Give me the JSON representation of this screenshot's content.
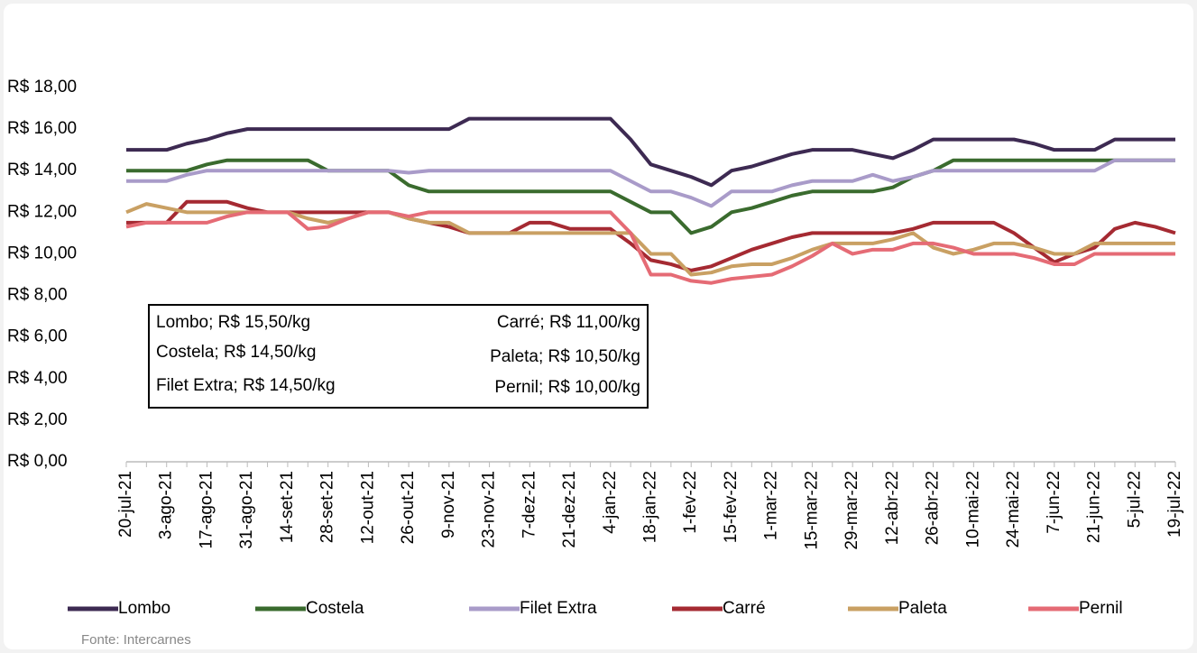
{
  "chart_data": {
    "type": "line",
    "categories": [
      "20-jul-21",
      null,
      "3-ago-21",
      null,
      "17-ago-21",
      null,
      "31-ago-21",
      null,
      "14-set-21",
      null,
      "28-set-21",
      null,
      "12-out-21",
      null,
      "26-out-21",
      null,
      "9-nov-21",
      null,
      "23-nov-21",
      null,
      "7-dez-21",
      null,
      "21-dez-21",
      null,
      "4-jan-22",
      null,
      "18-jan-22",
      null,
      "1-fev-22",
      null,
      "15-fev-22",
      null,
      "1-mar-22",
      null,
      "15-mar-22",
      null,
      "29-mar-22",
      null,
      "12-abr-22",
      null,
      "26-abr-22",
      null,
      "10-mai-22",
      null,
      "24-mai-22",
      null,
      "7-jun-22",
      null,
      "21-jun-22",
      null,
      "5-jul-22",
      null,
      "19-jul-22"
    ],
    "series": [
      {
        "name": "Lombo",
        "color": "#3d2a52",
        "values": [
          15,
          15,
          15,
          15.3,
          15.5,
          15.8,
          16,
          16,
          16,
          16,
          16,
          16,
          16,
          16,
          16,
          16,
          16,
          16.5,
          16.5,
          16.5,
          16.5,
          16.5,
          16.5,
          16.5,
          16.5,
          15.5,
          14.3,
          14,
          13.7,
          13.3,
          14,
          14.2,
          14.5,
          14.8,
          15,
          15,
          15,
          14.8,
          14.6,
          15,
          15.5,
          15.5,
          15.5,
          15.5,
          15.5,
          15.3,
          15,
          15,
          15,
          15.5,
          15.5,
          15.5,
          15.5
        ]
      },
      {
        "name": "Costela",
        "color": "#3a6b2e",
        "values": [
          14,
          14,
          14,
          14,
          14.3,
          14.5,
          14.5,
          14.5,
          14.5,
          14.5,
          14,
          14,
          14,
          14,
          13.3,
          13,
          13,
          13,
          13,
          13,
          13,
          13,
          13,
          13,
          13,
          12.5,
          12,
          12,
          11,
          11.3,
          12,
          12.2,
          12.5,
          12.8,
          13,
          13,
          13,
          13,
          13.2,
          13.7,
          14,
          14.5,
          14.5,
          14.5,
          14.5,
          14.5,
          14.5,
          14.5,
          14.5,
          14.5,
          14.5,
          14.5,
          14.5
        ]
      },
      {
        "name": "Filet Extra",
        "color": "#a99bc9",
        "values": [
          13.5,
          13.5,
          13.5,
          13.8,
          14,
          14,
          14,
          14,
          14,
          14,
          14,
          14,
          14,
          14,
          13.9,
          14,
          14,
          14,
          14,
          14,
          14,
          14,
          14,
          14,
          14,
          13.5,
          13,
          13,
          12.7,
          12.3,
          13,
          13,
          13,
          13.3,
          13.5,
          13.5,
          13.5,
          13.8,
          13.5,
          13.7,
          14,
          14,
          14,
          14,
          14,
          14,
          14,
          14,
          14,
          14.5,
          14.5,
          14.5,
          14.5
        ]
      },
      {
        "name": "Carré",
        "color": "#a52a32",
        "values": [
          11.5,
          11.5,
          11.5,
          12.5,
          12.5,
          12.5,
          12.2,
          12,
          12,
          12,
          12,
          12,
          12,
          12,
          11.7,
          11.5,
          11.3,
          11,
          11,
          11,
          11.5,
          11.5,
          11.2,
          11.2,
          11.2,
          10.5,
          9.7,
          9.5,
          9.2,
          9.4,
          9.8,
          10.2,
          10.5,
          10.8,
          11,
          11,
          11,
          11,
          11,
          11.2,
          11.5,
          11.5,
          11.5,
          11.5,
          11,
          10.3,
          9.6,
          10,
          10.3,
          11.2,
          11.5,
          11.3,
          11
        ]
      },
      {
        "name": "Paleta",
        "color": "#c9a063",
        "values": [
          12,
          12.4,
          12.2,
          12,
          12,
          12,
          12,
          12,
          12,
          11.7,
          11.5,
          11.7,
          12,
          12,
          11.7,
          11.5,
          11.5,
          11,
          11,
          11,
          11,
          11,
          11,
          11,
          11,
          11,
          10,
          10,
          9,
          9.1,
          9.4,
          9.5,
          9.5,
          9.8,
          10.2,
          10.5,
          10.5,
          10.5,
          10.7,
          11,
          10.3,
          10,
          10.2,
          10.5,
          10.5,
          10.3,
          10,
          10,
          10.5,
          10.5,
          10.5,
          10.5,
          10.5
        ]
      },
      {
        "name": "Pernil",
        "color": "#e56b75",
        "values": [
          11.3,
          11.5,
          11.5,
          11.5,
          11.5,
          11.8,
          12,
          12,
          12,
          11.2,
          11.3,
          11.7,
          12,
          12,
          11.8,
          12,
          12,
          12,
          12,
          12,
          12,
          12,
          12,
          12,
          12,
          11,
          9,
          9,
          8.7,
          8.6,
          8.8,
          8.9,
          9,
          9.4,
          9.9,
          10.5,
          10,
          10.2,
          10.2,
          10.5,
          10.5,
          10.3,
          10,
          10,
          10,
          9.8,
          9.5,
          9.5,
          10,
          10,
          10,
          10,
          10
        ]
      }
    ],
    "ylim": [
      0,
      18
    ],
    "yticks": [
      {
        "value": 0,
        "label": "R$ 0,00"
      },
      {
        "value": 2,
        "label": "R$ 2,00"
      },
      {
        "value": 4,
        "label": "R$ 4,00"
      },
      {
        "value": 6,
        "label": "R$ 6,00"
      },
      {
        "value": 8,
        "label": "R$ 8,00"
      },
      {
        "value": 10,
        "label": "R$ 10,00"
      },
      {
        "value": 12,
        "label": "R$ 12,00"
      },
      {
        "value": 14,
        "label": "R$ 14,00"
      },
      {
        "value": 16,
        "label": "R$ 16,00"
      },
      {
        "value": 18,
        "label": "R$ 18,00"
      }
    ],
    "grid": false,
    "legend": "bottom",
    "annotations": [
      "Lombo; R$ 15,50/kg",
      "Costela; R$ 14,50/kg",
      "Filet Extra; R$ 14,50/kg",
      "Carré; R$ 11,00/kg",
      "Paleta; R$ 10,50/kg",
      "Pernil; R$ 10,00/kg"
    ],
    "source": "Fonte: Intercarnes"
  }
}
